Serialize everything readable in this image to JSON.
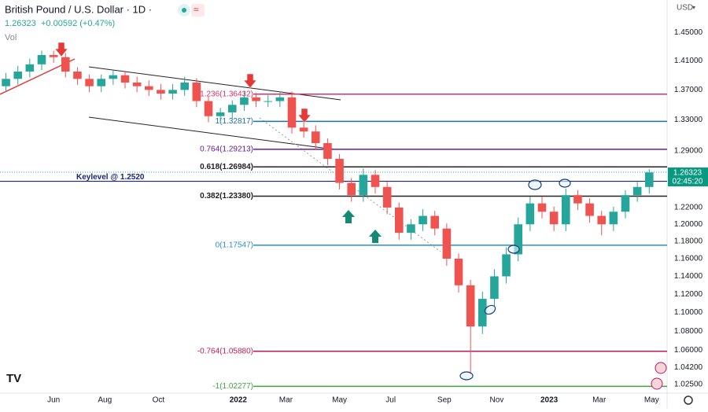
{
  "chart_data": {
    "type": "candlestick",
    "title": "British Pound / U.S. Dollar · 1D ·",
    "quote": {
      "last": "1.26323",
      "change": "+0.00592 (+0.47%)"
    },
    "volume_label": "Vol",
    "currency": "USD",
    "log_scale": true,
    "up_color": "#26a69a",
    "down_color": "#ef5350",
    "open": [
      1.375,
      1.385,
      1.395,
      1.405,
      1.418,
      1.415,
      1.395,
      1.385,
      1.375,
      1.385,
      1.39,
      1.38,
      1.375,
      1.37,
      1.365,
      1.37,
      1.38,
      1.355,
      1.335,
      1.34,
      1.35,
      1.36,
      1.355,
      1.355,
      1.36,
      1.32,
      1.315,
      1.3,
      1.28,
      1.25,
      1.235,
      1.26,
      1.245,
      1.22,
      1.19,
      1.2,
      1.21,
      1.195,
      1.16,
      1.13,
      1.085,
      1.115,
      1.14,
      1.165,
      1.2,
      1.225,
      1.215,
      1.2,
      1.235,
      1.225,
      1.21,
      1.2,
      1.215,
      1.235,
      1.245
    ],
    "high": [
      1.393,
      1.403,
      1.413,
      1.424,
      1.424,
      1.421,
      1.401,
      1.391,
      1.391,
      1.398,
      1.396,
      1.388,
      1.383,
      1.378,
      1.378,
      1.388,
      1.386,
      1.361,
      1.346,
      1.356,
      1.368,
      1.366,
      1.363,
      1.368,
      1.368,
      1.328,
      1.323,
      1.306,
      1.286,
      1.256,
      1.268,
      1.266,
      1.251,
      1.226,
      1.206,
      1.218,
      1.216,
      1.201,
      1.166,
      1.136,
      1.123,
      1.148,
      1.173,
      1.208,
      1.233,
      1.233,
      1.221,
      1.243,
      1.241,
      1.231,
      1.216,
      1.221,
      1.241,
      1.251,
      1.267
    ],
    "low": [
      1.367,
      1.377,
      1.387,
      1.397,
      1.407,
      1.387,
      1.377,
      1.367,
      1.367,
      1.377,
      1.372,
      1.367,
      1.362,
      1.357,
      1.357,
      1.362,
      1.347,
      1.327,
      1.327,
      1.332,
      1.342,
      1.347,
      1.347,
      1.347,
      1.312,
      1.307,
      1.292,
      1.272,
      1.242,
      1.227,
      1.227,
      1.237,
      1.212,
      1.182,
      1.182,
      1.192,
      1.187,
      1.152,
      1.122,
      1.035,
      1.077,
      1.107,
      1.132,
      1.157,
      1.192,
      1.207,
      1.192,
      1.192,
      1.217,
      1.202,
      1.187,
      1.192,
      1.207,
      1.227,
      1.237
    ],
    "close": [
      1.385,
      1.395,
      1.405,
      1.418,
      1.415,
      1.395,
      1.385,
      1.375,
      1.385,
      1.39,
      1.38,
      1.375,
      1.37,
      1.365,
      1.37,
      1.38,
      1.355,
      1.335,
      1.34,
      1.35,
      1.36,
      1.355,
      1.355,
      1.36,
      1.32,
      1.315,
      1.3,
      1.28,
      1.25,
      1.235,
      1.26,
      1.245,
      1.22,
      1.19,
      1.2,
      1.21,
      1.195,
      1.16,
      1.13,
      1.085,
      1.115,
      1.14,
      1.165,
      1.2,
      1.225,
      1.215,
      1.2,
      1.235,
      1.225,
      1.21,
      1.2,
      1.215,
      1.235,
      1.245,
      1.263
    ],
    "xlim": [
      0,
      56
    ],
    "xticks": [
      {
        "value": 4.5,
        "label": "Jun"
      },
      {
        "value": 8.8,
        "label": "Aug"
      },
      {
        "value": 13.3,
        "label": "Oct"
      },
      {
        "value": 20.0,
        "label": "2022"
      },
      {
        "value": 24.0,
        "label": "Mar"
      },
      {
        "value": 28.5,
        "label": "May"
      },
      {
        "value": 32.8,
        "label": "Jul"
      },
      {
        "value": 37.3,
        "label": "Sep"
      },
      {
        "value": 41.7,
        "label": "Nov"
      },
      {
        "value": 46.1,
        "label": "2023"
      },
      {
        "value": 50.3,
        "label": "Mar"
      },
      {
        "value": 54.7,
        "label": "May"
      }
    ],
    "ylim": [
      1.016,
      1.497
    ],
    "yticks": [
      {
        "value": 1.45,
        "label": "1.45000"
      },
      {
        "value": 1.41,
        "label": "1.41000"
      },
      {
        "value": 1.37,
        "label": "1.37000"
      },
      {
        "value": 1.33,
        "label": "1.33000"
      },
      {
        "value": 1.29,
        "label": "1.29000"
      },
      {
        "value": 1.22,
        "label": "1.22000"
      },
      {
        "value": 1.2,
        "label": "1.20000"
      },
      {
        "value": 1.18,
        "label": "1.18000"
      },
      {
        "value": 1.16,
        "label": "1.16000"
      },
      {
        "value": 1.14,
        "label": "1.14000"
      },
      {
        "value": 1.12,
        "label": "1.12000"
      },
      {
        "value": 1.1,
        "label": "1.10000"
      },
      {
        "value": 1.08,
        "label": "1.08000"
      },
      {
        "value": 1.06,
        "label": "1.06000"
      },
      {
        "value": 1.042,
        "label": "1.04200"
      },
      {
        "value": 1.025,
        "label": "1.02500"
      }
    ],
    "levels": [
      {
        "value": 1.36432,
        "label": "1.236(1.36432)",
        "color": "#d6336c"
      },
      {
        "value": 1.32817,
        "label": "1(1.32817)",
        "color": "#1e6fb8"
      },
      {
        "value": 1.29213,
        "label": "0.764(1.29213)",
        "color": "#6a1b9a"
      },
      {
        "value": 1.26984,
        "label": "0.618(1.26984)",
        "color": "#222222"
      },
      {
        "value": 1.2338,
        "label": "0.382(1.23380)",
        "color": "#222222"
      },
      {
        "value": 1.17547,
        "label": "0(1.17547)",
        "color": "#2a8fd6"
      },
      {
        "value": 1.0588,
        "label": "-0.764(1.05880)",
        "color": "#c2185b"
      },
      {
        "value": 1.02277,
        "label": "-1(1.02277)",
        "color": "#43a047"
      }
    ],
    "keylevel": {
      "value": 1.252,
      "label": "Keylevel @ 1.2520",
      "color": "#1a237e"
    },
    "last_price": {
      "value": 1.26323,
      "label": "1.26323"
    },
    "countdown": "02:45:20"
  }
}
